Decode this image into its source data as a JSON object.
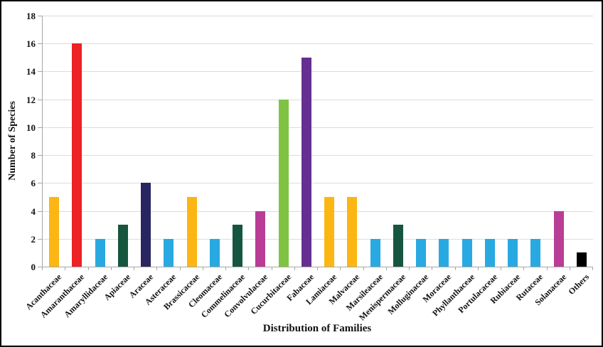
{
  "figure": {
    "background": "#ffffff",
    "border_color": "#000000"
  },
  "chart_data": {
    "type": "bar",
    "title": "",
    "xlabel": "Distribution of Families",
    "ylabel": "Number of Species",
    "ylim": [
      0,
      18
    ],
    "ytick_step": 2,
    "grid": true,
    "legend_position": "none",
    "categories": [
      "Acanthaceae",
      "Amaranthaceae",
      "Amaryllidaceae",
      "Apiaceae",
      "Araceae",
      "Asteraceae",
      "Brassicaceae",
      "Cleomaceae",
      "Commelinaceae",
      "Convolvulaceae",
      "Cucurbitaceae",
      "Fabaceae",
      "Lamiaceae",
      "Malvaceae",
      "Marsileaceae",
      "Menispermaceae",
      "Molluginaceae",
      "Moraceae",
      "Phyllanthaceae",
      "Portulacaceae",
      "Rubiaceae",
      "Rutaceae",
      "Solanaceae",
      "Others"
    ],
    "values": [
      5,
      16,
      2,
      3,
      6,
      2,
      5,
      2,
      3,
      4,
      12,
      15,
      5,
      5,
      2,
      3,
      2,
      2,
      2,
      2,
      2,
      2,
      4,
      1
    ],
    "bar_colors": [
      "#FCB614",
      "#EC2224",
      "#29A9E1",
      "#16563F",
      "#292561",
      "#29A9E1",
      "#FCB614",
      "#29A9E1",
      "#16563F",
      "#B93D96",
      "#80C342",
      "#652F91",
      "#FCB614",
      "#FCB614",
      "#29A9E1",
      "#16563F",
      "#29A9E1",
      "#29A9E1",
      "#29A9E1",
      "#29A9E1",
      "#29A9E1",
      "#29A9E1",
      "#B93D96",
      "#000000"
    ],
    "gridline_color": "#dcdcdc",
    "axis_color": "#a6a6a6",
    "text_color": "#111111"
  }
}
